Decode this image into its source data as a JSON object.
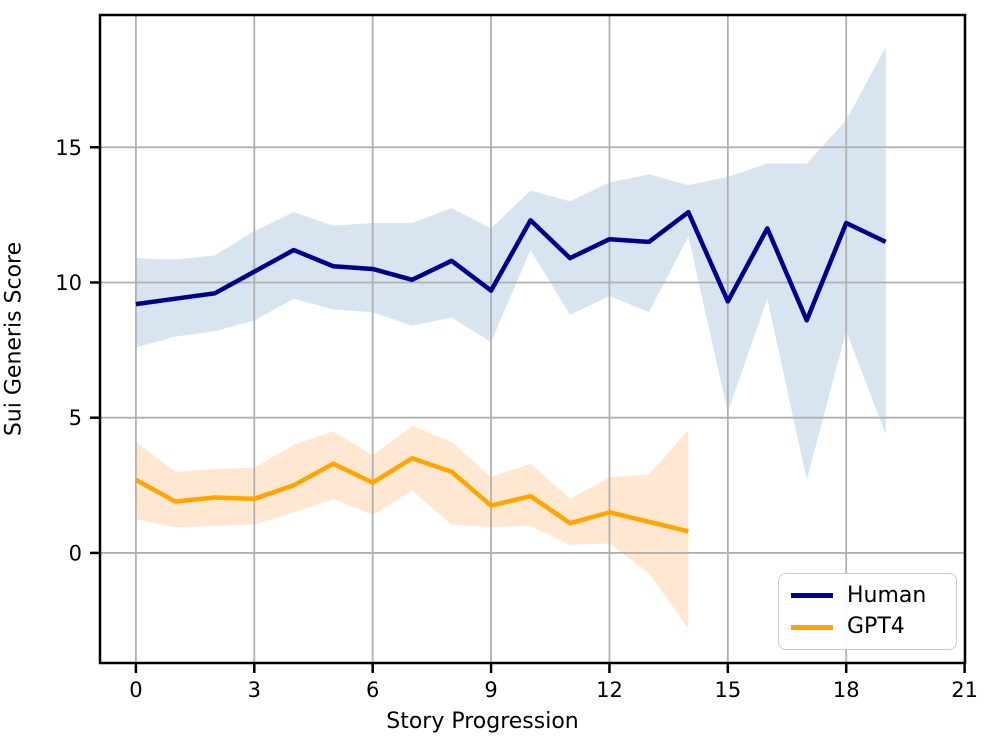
{
  "figure": {
    "background": "#ffffff"
  },
  "colors": {
    "grid": "#b0b0b0",
    "spine": "#000000",
    "tick_text": "#000000",
    "human_line": "#00008b",
    "human_band": "#d9e4f1",
    "gpt4_line": "#ffa500",
    "gpt4_band": "#ffe7d2"
  },
  "legend": {
    "items": [
      {
        "label": "Human",
        "color": "#00008b"
      },
      {
        "label": "GPT4",
        "color": "#ffa500"
      }
    ]
  },
  "chart_data": {
    "type": "line",
    "title": "",
    "xlabel": "Story Progression",
    "ylabel": "Sui Generis Score",
    "xlim": [
      -0.91,
      21.01
    ],
    "ylim": [
      -4.07,
      19.89
    ],
    "x_ticks": [
      0,
      3,
      6,
      9,
      12,
      15,
      18,
      21
    ],
    "y_ticks": [
      0,
      5,
      10,
      15
    ],
    "grid": true,
    "legend_position": "lower right",
    "series": [
      {
        "name": "Human",
        "color": "#00008b",
        "band_color": "#d9e4f1",
        "x": [
          0,
          1,
          2,
          3,
          4,
          5,
          6,
          7,
          8,
          9,
          10,
          11,
          12,
          13,
          14,
          15,
          16,
          17,
          18,
          19
        ],
        "values": [
          9.2,
          9.4,
          9.6,
          10.4,
          11.2,
          10.6,
          10.5,
          10.1,
          10.8,
          9.7,
          12.3,
          10.9,
          11.6,
          11.5,
          12.6,
          9.3,
          12.0,
          8.6,
          12.2,
          11.5
        ],
        "band_upper": [
          10.9,
          10.85,
          11.0,
          11.9,
          12.6,
          12.1,
          12.2,
          12.2,
          12.75,
          12.0,
          13.4,
          13.0,
          13.7,
          14.0,
          13.6,
          13.9,
          14.4,
          14.4,
          16.0,
          18.7
        ],
        "band_lower": [
          7.6,
          8.0,
          8.2,
          8.6,
          9.4,
          9.0,
          8.9,
          8.4,
          8.7,
          7.8,
          11.2,
          8.8,
          9.5,
          8.9,
          11.7,
          5.2,
          9.4,
          2.7,
          8.2,
          4.4
        ]
      },
      {
        "name": "GPT4",
        "color": "#ffa500",
        "band_color": "#ffe7d2",
        "x": [
          0,
          1,
          2,
          3,
          4,
          5,
          6,
          7,
          8,
          9,
          10,
          11,
          12,
          13,
          14
        ],
        "values": [
          2.7,
          1.9,
          2.05,
          2.0,
          2.5,
          3.3,
          2.6,
          3.5,
          3.0,
          1.75,
          2.1,
          1.1,
          1.5,
          1.15,
          0.8
        ],
        "band_upper": [
          4.1,
          3.0,
          3.1,
          3.15,
          4.0,
          4.5,
          3.6,
          4.7,
          4.1,
          2.8,
          3.3,
          2.0,
          2.8,
          2.9,
          4.55
        ],
        "band_lower": [
          1.25,
          0.95,
          1.0,
          1.05,
          1.5,
          2.0,
          1.4,
          2.3,
          1.05,
          0.95,
          1.0,
          0.3,
          0.35,
          -0.75,
          -2.8
        ]
      }
    ]
  }
}
